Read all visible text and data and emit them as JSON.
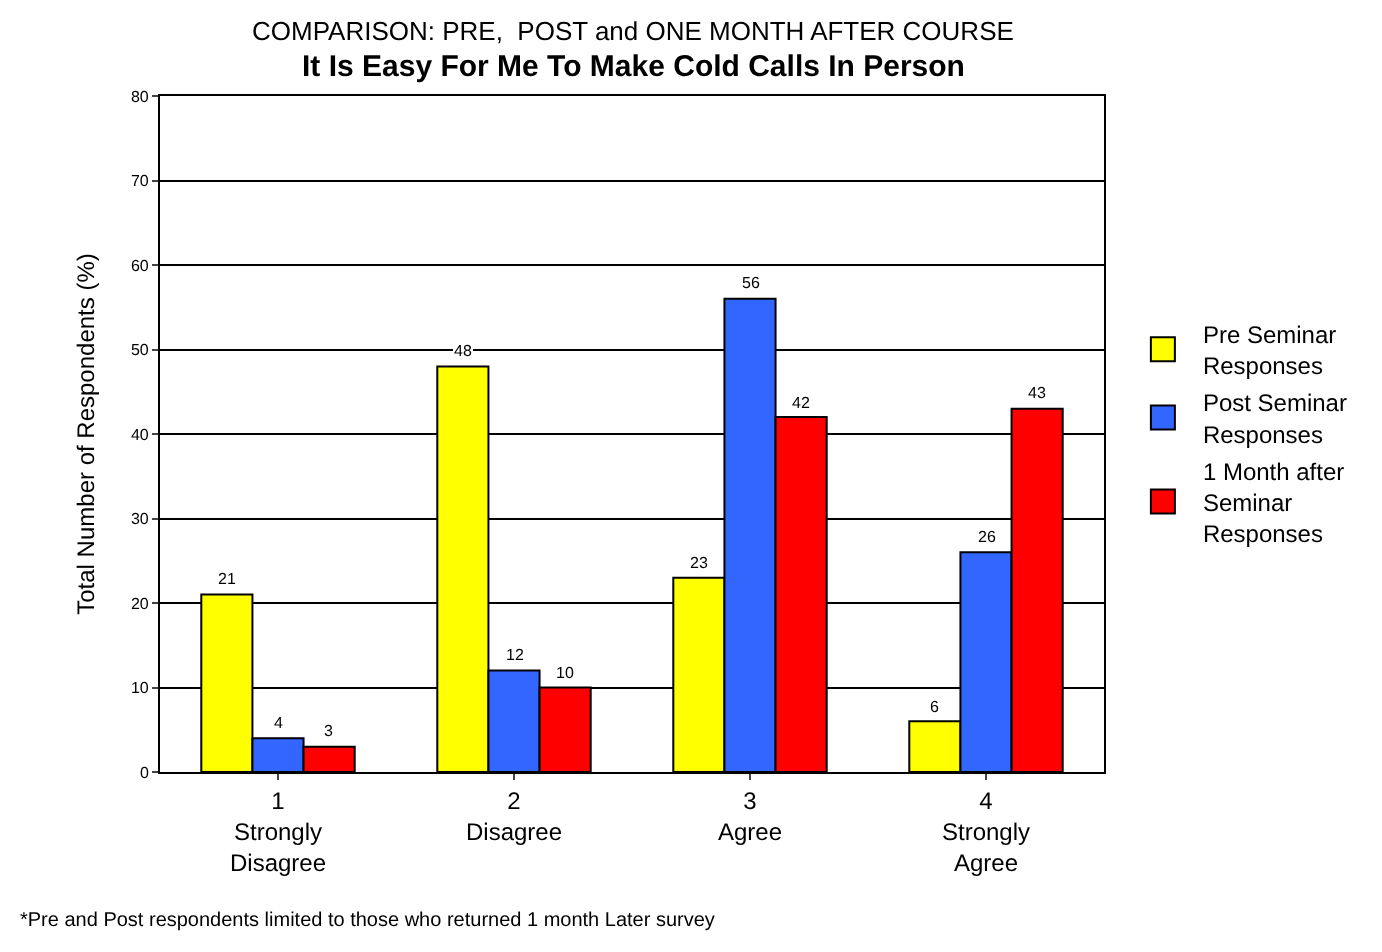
{
  "chart_data": {
    "type": "bar",
    "title": "COMPARISON: PRE,  POST and ONE MONTH AFTER COURSE",
    "subtitle": "It Is Easy For Me To Make Cold Calls In Person",
    "ylabel": "Total Number of Respondents (%)",
    "categories": [
      "1\nStrongly\nDisagree",
      "2\nDisagree",
      "3\nAgree",
      "4\nStrongly\nAgree"
    ],
    "series": [
      {
        "name": "Pre Seminar\nResponses",
        "color": "#ffff00",
        "values": [
          21,
          48,
          23,
          6
        ]
      },
      {
        "name": "Post Seminar\nResponses",
        "color": "#3366ff",
        "values": [
          4,
          12,
          56,
          26
        ]
      },
      {
        "name": "1 Month after\nSeminar\nResponses",
        "color": "#ff0000",
        "values": [
          3,
          10,
          42,
          43
        ]
      }
    ],
    "ylim": [
      0,
      80
    ],
    "yticks": [
      0,
      10,
      20,
      30,
      40,
      50,
      60,
      70,
      80
    ],
    "grid": "y",
    "legend": "right",
    "data_labels": true,
    "annotations": [
      "*Pre and Post respondents limited to those who returned 1 month Later survey"
    ]
  }
}
